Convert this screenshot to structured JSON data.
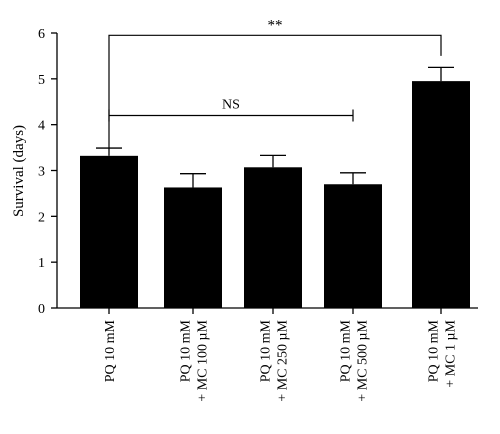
{
  "chart_data": {
    "type": "bar",
    "title": "",
    "xlabel": "",
    "ylabel": "Survival (days)",
    "ylim": [
      0,
      6
    ],
    "yticks": [
      "0",
      "1",
      "2",
      "3",
      "4",
      "5",
      "6"
    ],
    "grid": false,
    "categories": [
      [
        "PQ 10 mM"
      ],
      [
        "PQ 10 mM",
        "+ MC 100 µM"
      ],
      [
        "PQ 10 mM",
        "+ MC 250 µM"
      ],
      [
        "PQ 10 mM",
        "+ MC 500 µM"
      ],
      [
        "PQ 10 mM",
        "+ MC 1 µM"
      ]
    ],
    "values": [
      3.32,
      2.63,
      3.07,
      2.7,
      4.95
    ],
    "errors": [
      0.17,
      0.3,
      0.26,
      0.25,
      0.3
    ],
    "bar_color": "#000000",
    "annotations": [
      {
        "label": "**",
        "from": 0,
        "to": 4,
        "y": 5.95,
        "type": "bracket"
      },
      {
        "label": "NS",
        "from": 0,
        "to": 3,
        "y": 4.2,
        "type": "line"
      }
    ]
  }
}
